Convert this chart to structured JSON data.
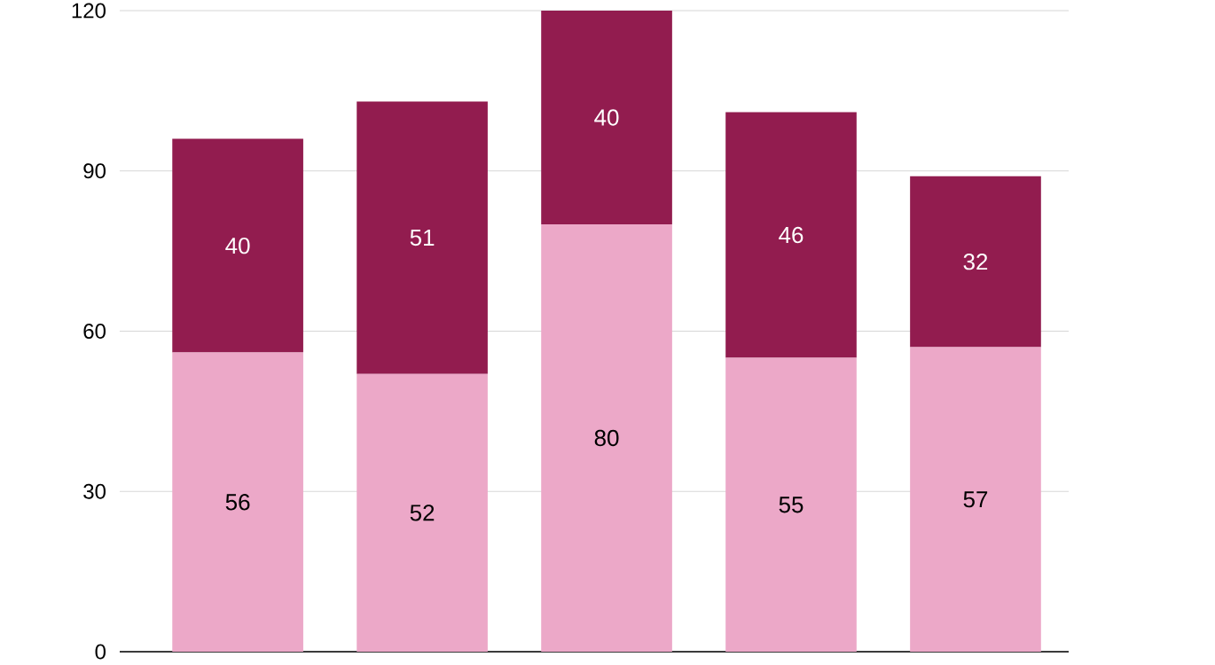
{
  "chart_data": {
    "type": "bar",
    "stacked": true,
    "categories": [
      null,
      null,
      null,
      null,
      null
    ],
    "series": [
      {
        "color": "#eca8c8",
        "values": [
          56,
          52,
          80,
          55,
          57
        ]
      },
      {
        "color": "#921c4f",
        "values": [
          40,
          51,
          40,
          46,
          32
        ]
      }
    ],
    "ylim": [
      0,
      120
    ],
    "yticks": [
      0,
      30,
      60,
      90,
      120
    ],
    "grid": "y",
    "data_labels": true
  }
}
